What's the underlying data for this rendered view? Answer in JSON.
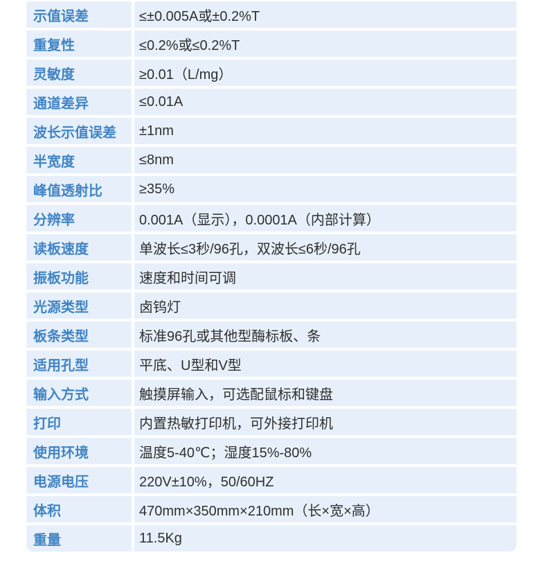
{
  "page": {
    "background_color": "#ffffff",
    "row_background_color": "#e7f0fa",
    "label_text_color": "#4184c4",
    "value_text_color": "#2f2f2f"
  },
  "spec_table": {
    "rows": [
      {
        "label": "示值误差",
        "value": "≤±0.005A或±0.2%T"
      },
      {
        "label": "重复性",
        "value": "≤0.2%或≤0.2%T"
      },
      {
        "label": "灵敏度",
        "value": "≥0.01（L/mg）"
      },
      {
        "label": "通道差异",
        "value": "≤0.01A"
      },
      {
        "label": "波长示值误差",
        "value": "±1nm"
      },
      {
        "label": "半宽度",
        "value": "≤8nm"
      },
      {
        "label": "峰值透射比",
        "value": "≥35%"
      },
      {
        "label": "分辨率",
        "value": "0.001A（显示），0.0001A（内部计算）"
      },
      {
        "label": "读板速度",
        "value": "单波长≤3秒/96孔，双波长≤6秒/96孔"
      },
      {
        "label": "振板功能",
        "value": "速度和时间可调"
      },
      {
        "label": "光源类型",
        "value": "卤钨灯"
      },
      {
        "label": "板条类型",
        "value": "标准96孔或其他型酶标板、条"
      },
      {
        "label": "适用孔型",
        "value": "平底、U型和V型"
      },
      {
        "label": "输入方式",
        "value": "触摸屏输入，可选配鼠标和键盘"
      },
      {
        "label": "打印",
        "value": "内置热敏打印机，可外接打印机"
      },
      {
        "label": "使用环境",
        "value": "温度5-40℃；湿度15%-80%"
      },
      {
        "label": "电源电压",
        "value": "220V±10%，50/60HZ"
      },
      {
        "label": "体积",
        "value": "470mm×350mm×210mm（长×宽×高）"
      },
      {
        "label": "重量",
        "value": "11.5Kg"
      }
    ]
  }
}
